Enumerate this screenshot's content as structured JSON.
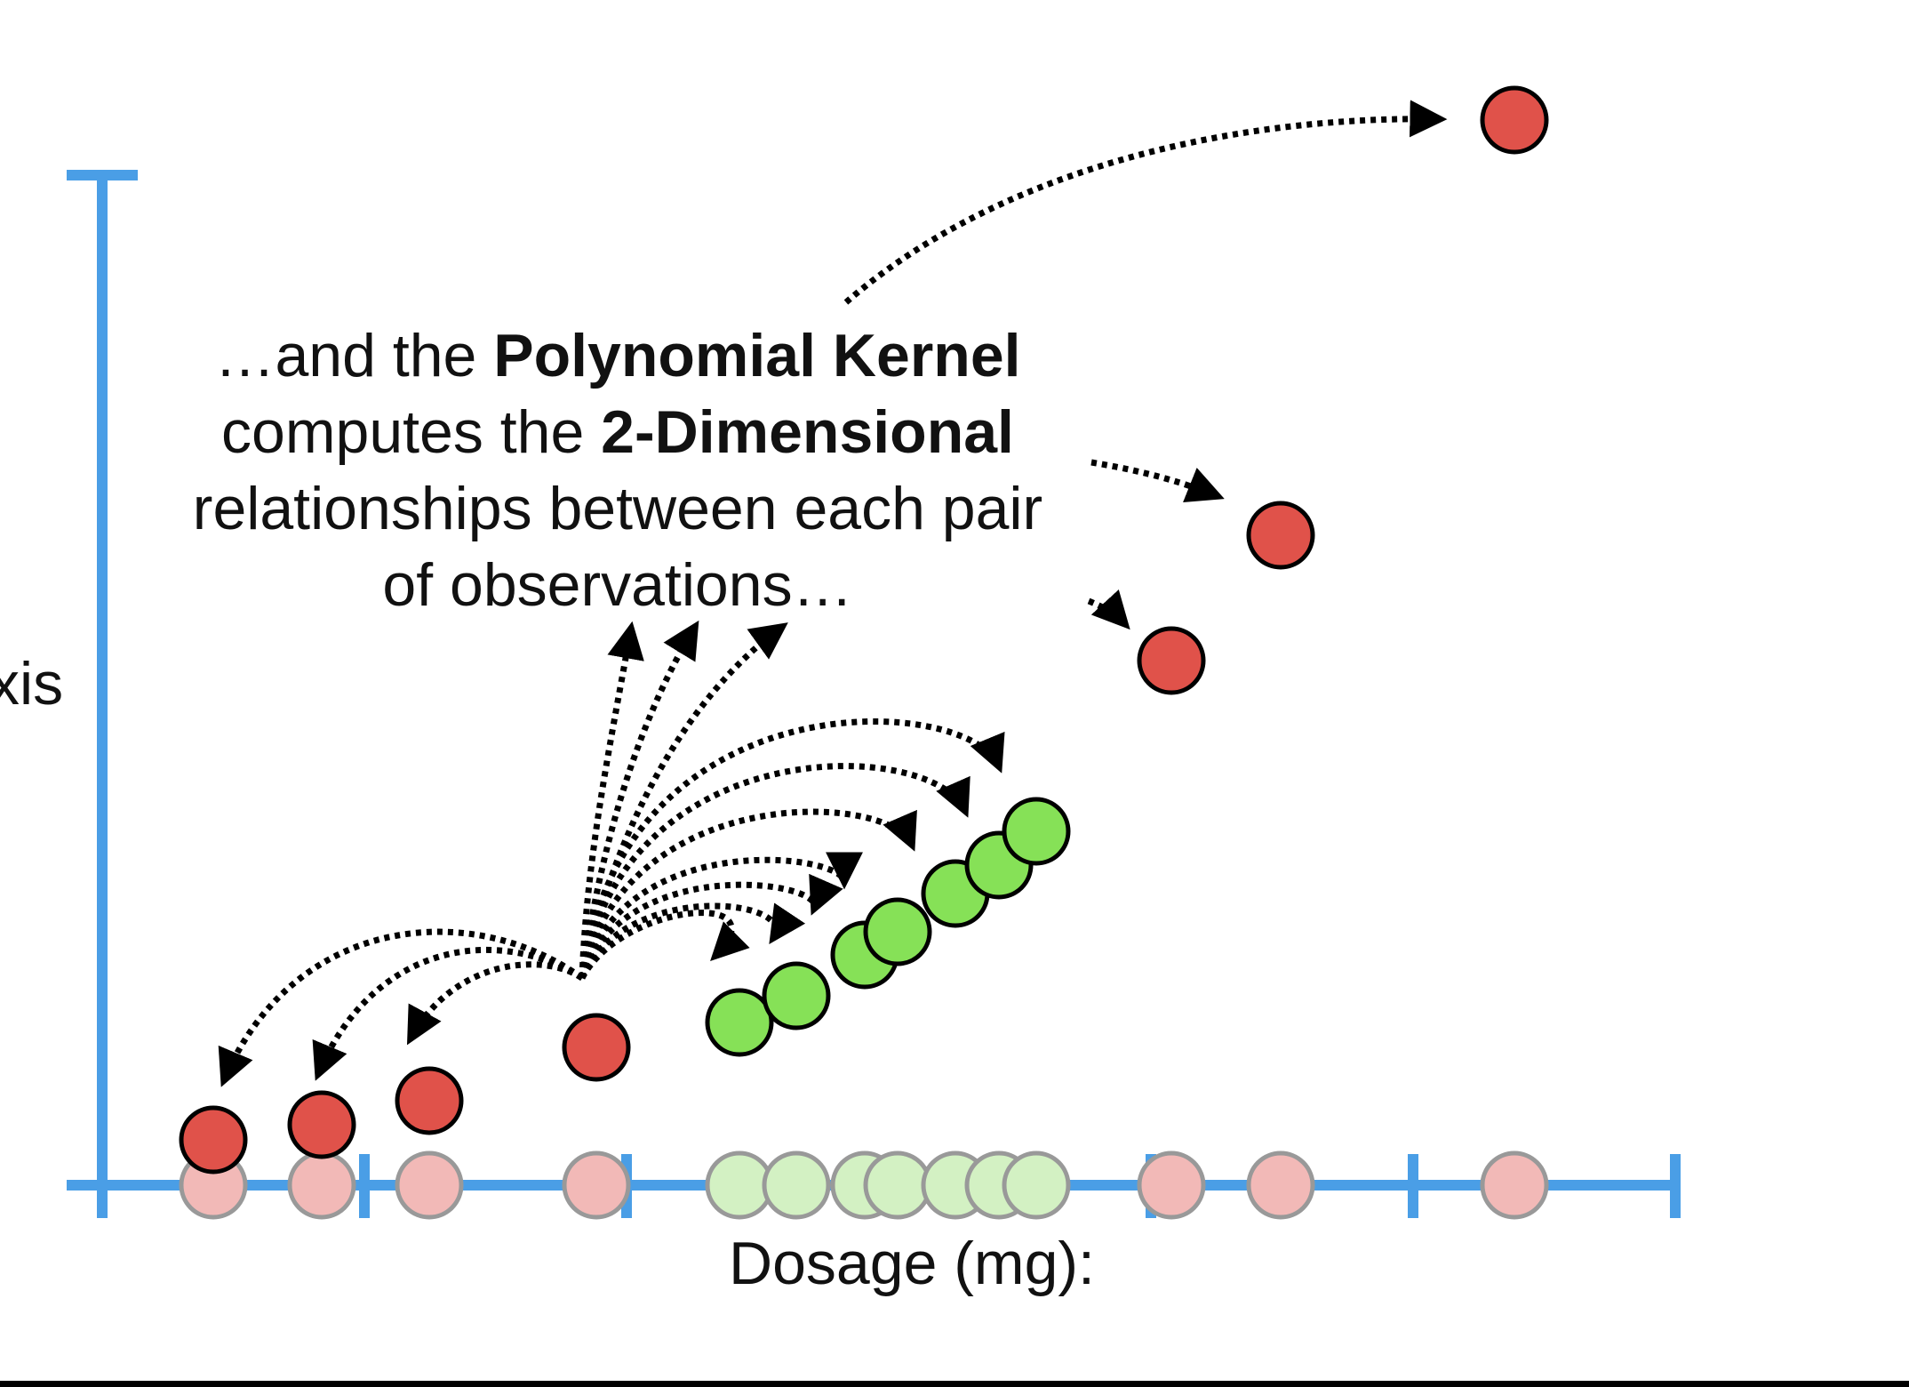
{
  "annotation": {
    "line1_pre": "…and the ",
    "line1_bold": "Polynomial Kernel",
    "line2_pre": "computes the ",
    "line2_bold": "2-Dimensional",
    "line3": "relationships between each pair",
    "line4": "of observations…"
  },
  "axes": {
    "x_label": "Dosage (mg):",
    "y_label_fragment": "xis",
    "axis_color": "#4a9ee6"
  },
  "colors": {
    "red_point": "#e0524a",
    "red_shadow": "#f2b9b7",
    "green_point": "#86e157",
    "green_shadow": "#d3f1c3",
    "arrow": "#000000"
  },
  "chart_data": {
    "type": "scatter",
    "x_categories_order": [
      "red",
      "red",
      "red",
      "red",
      "green",
      "green",
      "green",
      "green",
      "green",
      "green",
      "green",
      "red",
      "red",
      "red"
    ],
    "series": [
      {
        "name": "",
        "class": "red",
        "dosage": [
          1,
          2,
          3,
          4.5,
          10.5,
          11.5,
          14
        ]
      },
      {
        "name": "",
        "class": "green",
        "dosage": [
          6,
          6.7,
          7.3,
          7.6,
          8.3,
          8.7,
          9
        ]
      }
    ],
    "transformed_points_visible": "2D projection of 1D dosage values"
  }
}
